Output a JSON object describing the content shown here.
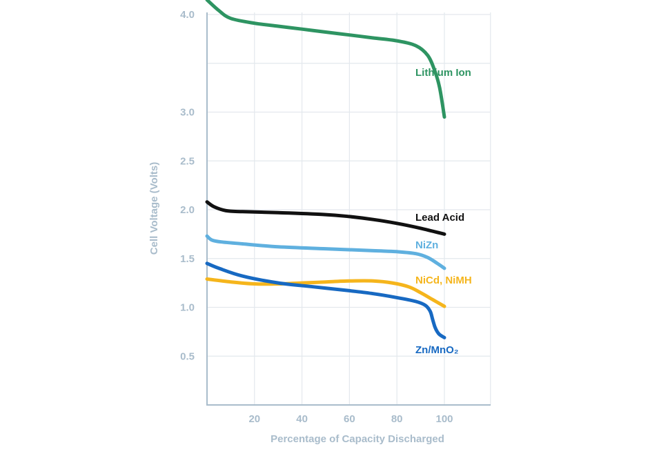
{
  "chart_data": {
    "type": "line",
    "title": "",
    "xlabel": "Percentage of Capacity Discharged",
    "ylabel": "Cell Voltage (Volts)",
    "xlim": [
      0,
      120
    ],
    "ylim": [
      0,
      5.2
    ],
    "x_ticks": [
      20,
      40,
      60,
      80,
      100
    ],
    "x_tick_labels": [
      "20",
      "40",
      "60",
      "80",
      "100"
    ],
    "y_ticks": [
      0.5,
      1.0,
      1.5,
      2.0,
      2.5,
      3.0,
      4.0
    ],
    "y_tick_labels": [
      "0.5",
      "1.0",
      "1.5",
      "2.0",
      "2.5",
      "3.0",
      "4.0"
    ],
    "grid": true,
    "legend": "inline labels at line ends",
    "series": [
      {
        "name": "Lithium Ion",
        "color": "#2e9462",
        "x": [
          0,
          5,
          10,
          20,
          30,
          40,
          50,
          60,
          70,
          80,
          88,
          93,
          96,
          98,
          100
        ],
        "y": [
          4.15,
          4.04,
          3.96,
          3.91,
          3.88,
          3.85,
          3.82,
          3.79,
          3.76,
          3.73,
          3.68,
          3.58,
          3.42,
          3.25,
          2.95
        ]
      },
      {
        "name": "Lead Acid",
        "color": "#111111",
        "x": [
          0,
          3,
          8,
          15,
          30,
          50,
          60,
          70,
          80,
          90,
          100
        ],
        "y": [
          2.08,
          2.03,
          1.99,
          1.98,
          1.97,
          1.95,
          1.93,
          1.9,
          1.86,
          1.81,
          1.75
        ]
      },
      {
        "name": "NiZn",
        "color": "#5fb0df",
        "x": [
          0,
          2,
          6,
          15,
          30,
          50,
          70,
          80,
          88,
          93,
          97,
          100
        ],
        "y": [
          1.73,
          1.69,
          1.67,
          1.65,
          1.62,
          1.6,
          1.58,
          1.57,
          1.55,
          1.51,
          1.45,
          1.4
        ]
      },
      {
        "name": "NiCd, NiMH",
        "color": "#f5b51c",
        "x": [
          0,
          10,
          20,
          30,
          40,
          50,
          60,
          70,
          78,
          85,
          90,
          95,
          100
        ],
        "y": [
          1.29,
          1.26,
          1.24,
          1.24,
          1.25,
          1.26,
          1.27,
          1.27,
          1.25,
          1.21,
          1.15,
          1.08,
          1.01
        ]
      },
      {
        "name": "Zn/MnO₂",
        "color": "#1769c2",
        "x": [
          0,
          5,
          15,
          30,
          45,
          60,
          70,
          80,
          88,
          92,
          94,
          95,
          96,
          97,
          98,
          100
        ],
        "y": [
          1.45,
          1.4,
          1.32,
          1.25,
          1.21,
          1.17,
          1.14,
          1.1,
          1.06,
          1.02,
          0.96,
          0.88,
          0.8,
          0.75,
          0.72,
          0.69
        ]
      }
    ]
  }
}
